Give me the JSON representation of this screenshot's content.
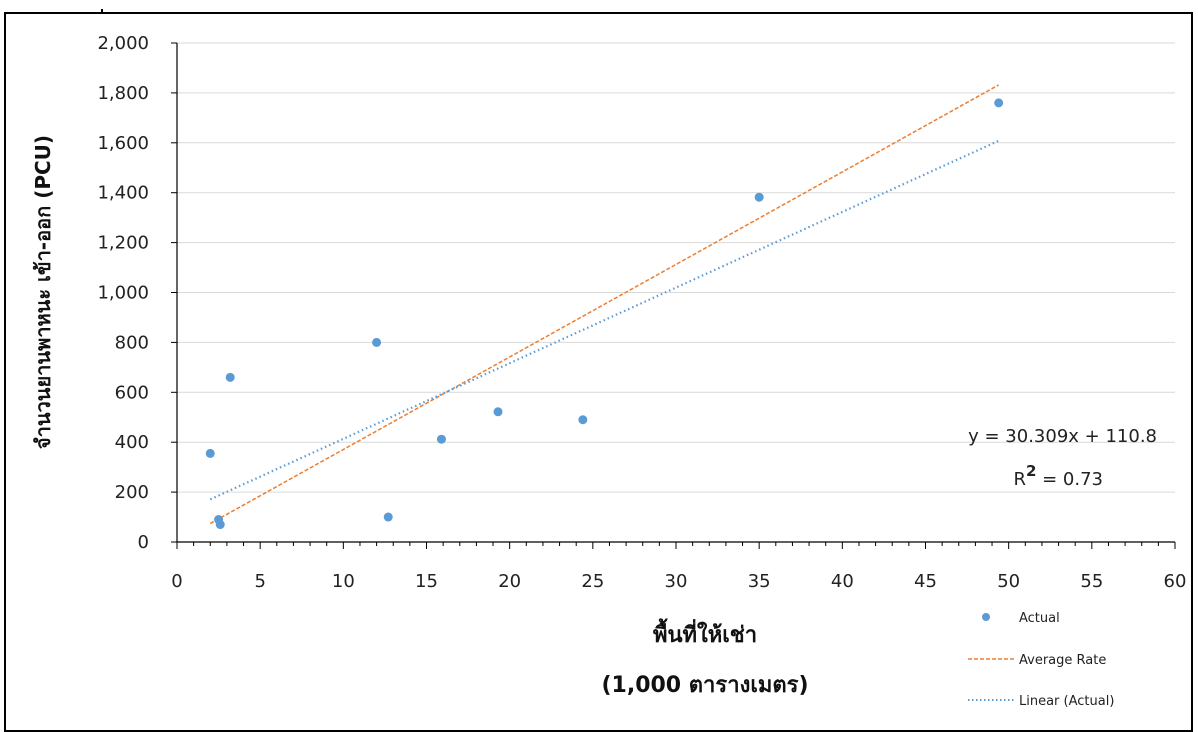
{
  "chart_data": {
    "type": "scatter",
    "xlabel_line1": "พื้นที่ให้เช่า",
    "xlabel_line2": "(1,000 ตารางเมตร)",
    "ylabel": "จำนวนยานพาหนะ  เข้า-ออก (PCU)",
    "xlim": [
      0,
      60
    ],
    "ylim": [
      0,
      2000
    ],
    "x_ticks": [
      0,
      5,
      10,
      15,
      20,
      25,
      30,
      35,
      40,
      45,
      50,
      55,
      60
    ],
    "x_tick_labels": [
      "0",
      "5",
      "10",
      "15",
      "20",
      "25",
      "30",
      "35",
      "40",
      "45",
      "50",
      "55",
      "60"
    ],
    "y_ticks": [
      0,
      200,
      400,
      600,
      800,
      1000,
      1200,
      1400,
      1600,
      1800,
      2000
    ],
    "y_tick_labels": [
      "0",
      "200",
      "400",
      "600",
      "800",
      "1,000",
      "1,200",
      "1,400",
      "1,600",
      "1,800",
      "2,000"
    ],
    "grid": "horizontal",
    "legend_position": "bottom-right",
    "series": [
      {
        "name": "Actual",
        "kind": "scatter",
        "color": "#5B9BD5",
        "points": [
          {
            "x": 2.0,
            "y": 355
          },
          {
            "x": 2.5,
            "y": 90
          },
          {
            "x": 2.6,
            "y": 70
          },
          {
            "x": 3.2,
            "y": 660
          },
          {
            "x": 12.0,
            "y": 800
          },
          {
            "x": 12.7,
            "y": 100
          },
          {
            "x": 15.9,
            "y": 412
          },
          {
            "x": 19.3,
            "y": 522
          },
          {
            "x": 24.4,
            "y": 490
          },
          {
            "x": 35.0,
            "y": 1382
          },
          {
            "x": 49.4,
            "y": 1760
          }
        ]
      },
      {
        "name": "Average Rate",
        "kind": "line",
        "style": "dashed",
        "color": "#ED7D31",
        "points": [
          {
            "x": 2.0,
            "y": 74
          },
          {
            "x": 49.4,
            "y": 1832
          }
        ]
      },
      {
        "name": "Linear (Actual)",
        "kind": "line",
        "style": "dotted",
        "color": "#5B9BD5",
        "points": [
          {
            "x": 2.0,
            "y": 171
          },
          {
            "x": 49.4,
            "y": 1608
          }
        ]
      }
    ],
    "annotations": {
      "equation": "y = 30.309x + 110.8",
      "r2_prefix": "R",
      "r2_sup": "2",
      "r2_suffix": " = 0.73"
    }
  }
}
